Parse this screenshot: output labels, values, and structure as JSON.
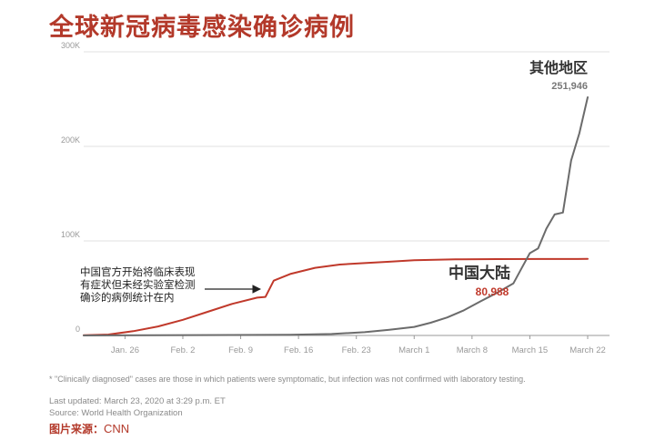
{
  "title": "全球新冠病毒感染确诊病例",
  "chart_data": {
    "type": "line",
    "ylim": [
      0,
      300000
    ],
    "yticks": [
      0,
      100000,
      200000,
      300000
    ],
    "ytick_labels": [
      "0",
      "100K",
      "200K",
      "300K"
    ],
    "xlim": [
      "2020-01-21",
      "2020-03-22"
    ],
    "xtick_labels": [
      "Jan. 26",
      "Feb. 2",
      "Feb. 9",
      "Feb. 16",
      "Feb. 23",
      "March 1",
      "March 8",
      "March 15",
      "March 22"
    ],
    "xtick_dates": [
      "2020-01-26",
      "2020-02-02",
      "2020-02-09",
      "2020-02-16",
      "2020-02-23",
      "2020-03-01",
      "2020-03-08",
      "2020-03-15",
      "2020-03-22"
    ],
    "grid": true,
    "series": [
      {
        "name": "中国大陆",
        "color": "#c0392b",
        "end_label": "80,988",
        "x": [
          "2020-01-21",
          "2020-01-24",
          "2020-01-27",
          "2020-01-30",
          "2020-02-02",
          "2020-02-05",
          "2020-02-08",
          "2020-02-11",
          "2020-02-12",
          "2020-02-13",
          "2020-02-15",
          "2020-02-18",
          "2020-02-21",
          "2020-02-24",
          "2020-02-27",
          "2020-03-01",
          "2020-03-06",
          "2020-03-11",
          "2020-03-16",
          "2020-03-22"
        ],
        "values": [
          300,
          1000,
          4500,
          9500,
          16500,
          25000,
          33500,
          40000,
          40800,
          58000,
          65000,
          71500,
          75000,
          76500,
          78000,
          79500,
          80500,
          80800,
          80900,
          80988
        ]
      },
      {
        "name": "其他地区",
        "color": "#6b6b6b",
        "end_label": "251,946",
        "x": [
          "2020-01-21",
          "2020-02-15",
          "2020-02-20",
          "2020-02-24",
          "2020-02-27",
          "2020-03-01",
          "2020-03-03",
          "2020-03-05",
          "2020-03-07",
          "2020-03-09",
          "2020-03-11",
          "2020-03-12",
          "2020-03-13",
          "2020-03-14",
          "2020-03-15",
          "2020-03-16",
          "2020-03-17",
          "2020-03-18",
          "2020-03-19",
          "2020-03-20",
          "2020-03-21",
          "2020-03-22"
        ],
        "values": [
          0,
          700,
          1500,
          3500,
          6000,
          9000,
          13500,
          19000,
          26500,
          36000,
          45000,
          50000,
          55000,
          71000,
          87000,
          92000,
          113000,
          128000,
          130000,
          185000,
          214000,
          251946
        ]
      }
    ],
    "annotation": {
      "lines": [
        "中国官方开始将临床表现",
        "有症状但未经实验室检测",
        "确诊的病例统计在内"
      ],
      "at": "2020-02-12"
    }
  },
  "footnote": "* \"Clinically diagnosed\" cases are those in which patients were symptomatic, but infection was not confirmed with laboratory testing.",
  "updated": "Last updated: March 23, 2020 at 3:29 p.m. ET",
  "source": "Source: World Health Organization",
  "credit_label": "图片来源：",
  "credit_name": "CNN"
}
